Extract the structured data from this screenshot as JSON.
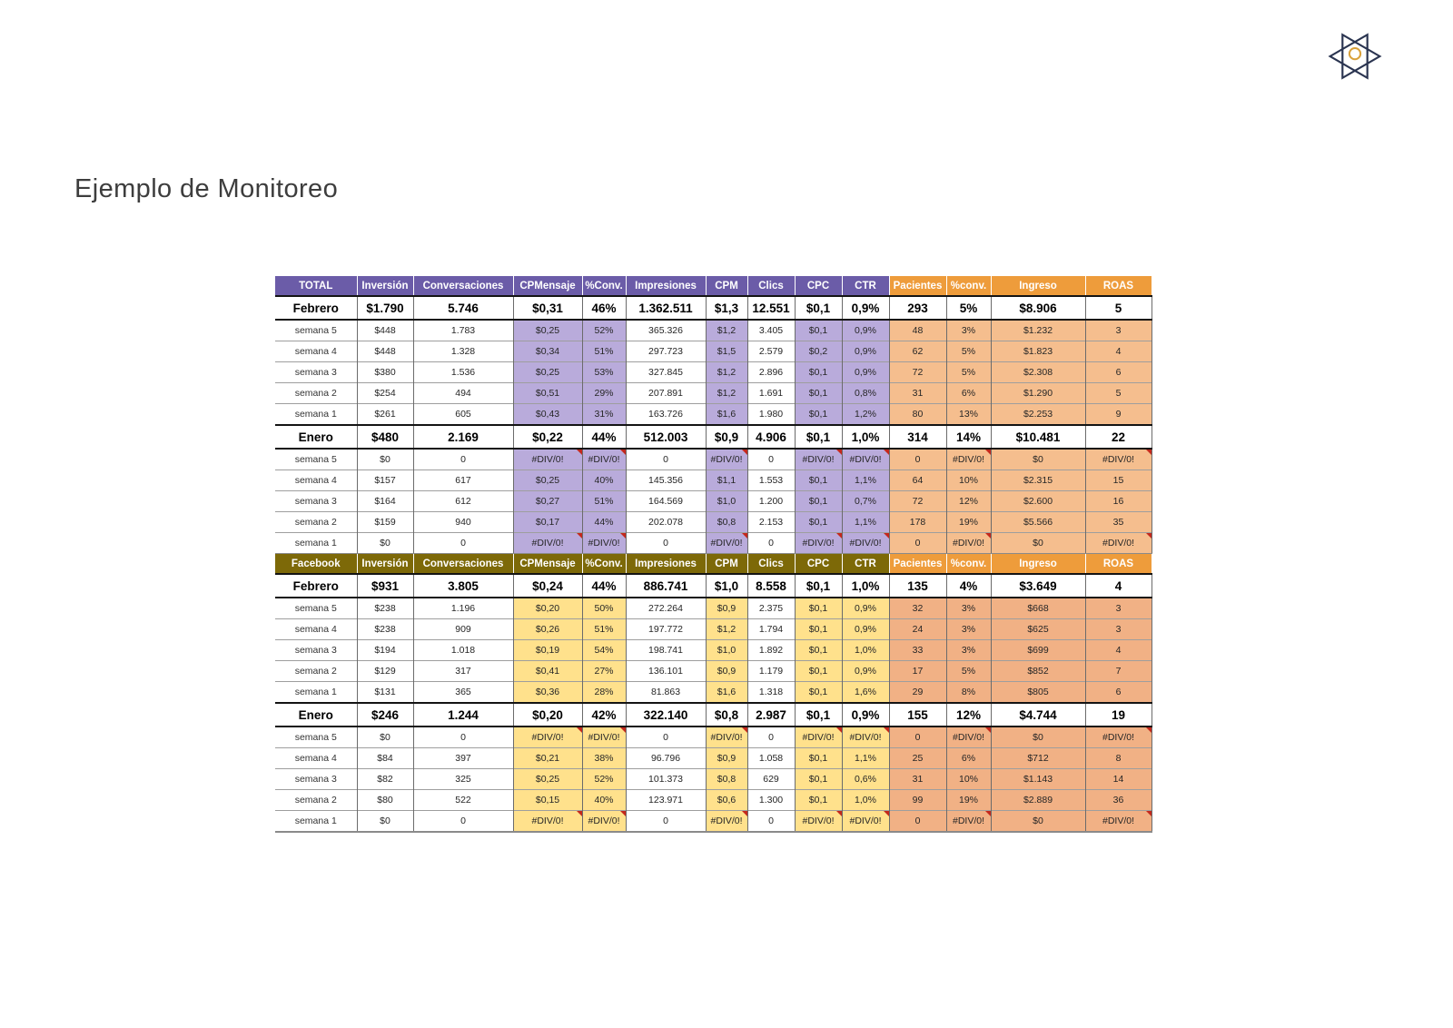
{
  "title": "Ejemplo de Monitoreo",
  "logo": {
    "star_color": "#2A3450",
    "circle_color": "#D9A13B"
  },
  "error_value": "#DIV/0!",
  "flag_color": "#C4281C",
  "tables": [
    {
      "id": "total",
      "colors": {
        "header": "#6B5CA8",
        "highlight": "#B9ABDB",
        "accent_header": "#EE9C3B",
        "accent_light": "#F5BE8E"
      },
      "header": [
        "TOTAL",
        "Inversión",
        "Conversaciones",
        "CPMensaje",
        "%Conv.",
        "Impresiones",
        "CPM",
        "Clics",
        "CPC",
        "CTR",
        "Pacientes",
        "%conv.",
        "Ingreso",
        "ROAS"
      ],
      "rows": [
        {
          "type": "month",
          "cells": [
            "Febrero",
            "$1.790",
            "5.746",
            "$0,31",
            "46%",
            "1.362.511",
            "$1,3",
            "12.551",
            "$0,1",
            "0,9%",
            "293",
            "5%",
            "$8.906",
            "5"
          ]
        },
        {
          "type": "week",
          "cells": [
            "semana 5",
            "$448",
            "1.783",
            "$0,25",
            "52%",
            "365.326",
            "$1,2",
            "3.405",
            "$0,1",
            "0,9%",
            "48",
            "3%",
            "$1.232",
            "3"
          ]
        },
        {
          "type": "week",
          "cells": [
            "semana 4",
            "$448",
            "1.328",
            "$0,34",
            "51%",
            "297.723",
            "$1,5",
            "2.579",
            "$0,2",
            "0,9%",
            "62",
            "5%",
            "$1.823",
            "4"
          ]
        },
        {
          "type": "week",
          "cells": [
            "semana 3",
            "$380",
            "1.536",
            "$0,25",
            "53%",
            "327.845",
            "$1,2",
            "2.896",
            "$0,1",
            "0,9%",
            "72",
            "5%",
            "$2.308",
            "6"
          ]
        },
        {
          "type": "week",
          "cells": [
            "semana 2",
            "$254",
            "494",
            "$0,51",
            "29%",
            "207.891",
            "$1,2",
            "1.691",
            "$0,1",
            "0,8%",
            "31",
            "6%",
            "$1.290",
            "5"
          ]
        },
        {
          "type": "week",
          "cells": [
            "semana 1",
            "$261",
            "605",
            "$0,43",
            "31%",
            "163.726",
            "$1,6",
            "1.980",
            "$0,1",
            "1,2%",
            "80",
            "13%",
            "$2.253",
            "9"
          ]
        },
        {
          "type": "month",
          "cells": [
            "Enero",
            "$480",
            "2.169",
            "$0,22",
            "44%",
            "512.003",
            "$0,9",
            "4.906",
            "$0,1",
            "1,0%",
            "314",
            "14%",
            "$10.481",
            "22"
          ]
        },
        {
          "type": "week",
          "cells": [
            "semana 5",
            "$0",
            "0",
            "#DIV/0!",
            "#DIV/0!",
            "0",
            "#DIV/0!",
            "0",
            "#DIV/0!",
            "#DIV/0!",
            "0",
            "#DIV/0!",
            "$0",
            "#DIV/0!"
          ]
        },
        {
          "type": "week",
          "cells": [
            "semana 4",
            "$157",
            "617",
            "$0,25",
            "40%",
            "145.356",
            "$1,1",
            "1.553",
            "$0,1",
            "1,1%",
            "64",
            "10%",
            "$2.315",
            "15"
          ]
        },
        {
          "type": "week",
          "cells": [
            "semana 3",
            "$164",
            "612",
            "$0,27",
            "51%",
            "164.569",
            "$1,0",
            "1.200",
            "$0,1",
            "0,7%",
            "72",
            "12%",
            "$2.600",
            "16"
          ]
        },
        {
          "type": "week",
          "cells": [
            "semana 2",
            "$159",
            "940",
            "$0,17",
            "44%",
            "202.078",
            "$0,8",
            "2.153",
            "$0,1",
            "1,1%",
            "178",
            "19%",
            "$5.566",
            "35"
          ]
        },
        {
          "type": "week",
          "cells": [
            "semana 1",
            "$0",
            "0",
            "#DIV/0!",
            "#DIV/0!",
            "0",
            "#DIV/0!",
            "0",
            "#DIV/0!",
            "#DIV/0!",
            "0",
            "#DIV/0!",
            "$0",
            "#DIV/0!"
          ]
        }
      ]
    },
    {
      "id": "facebook",
      "colors": {
        "header": "#7D6908",
        "highlight": "#FFE18C",
        "accent_header": "#EE9C3B",
        "accent_light": "#F1B185"
      },
      "header": [
        "Facebook",
        "Inversión",
        "Conversaciones",
        "CPMensaje",
        "%Conv.",
        "Impresiones",
        "CPM",
        "Clics",
        "CPC",
        "CTR",
        "Pacientes",
        "%conv.",
        "Ingreso",
        "ROAS"
      ],
      "rows": [
        {
          "type": "month",
          "cells": [
            "Febrero",
            "$931",
            "3.805",
            "$0,24",
            "44%",
            "886.741",
            "$1,0",
            "8.558",
            "$0,1",
            "1,0%",
            "135",
            "4%",
            "$3.649",
            "4"
          ]
        },
        {
          "type": "week",
          "cells": [
            "semana 5",
            "$238",
            "1.196",
            "$0,20",
            "50%",
            "272.264",
            "$0,9",
            "2.375",
            "$0,1",
            "0,9%",
            "32",
            "3%",
            "$668",
            "3"
          ]
        },
        {
          "type": "week",
          "cells": [
            "semana 4",
            "$238",
            "909",
            "$0,26",
            "51%",
            "197.772",
            "$1,2",
            "1.794",
            "$0,1",
            "0,9%",
            "24",
            "3%",
            "$625",
            "3"
          ]
        },
        {
          "type": "week",
          "cells": [
            "semana 3",
            "$194",
            "1.018",
            "$0,19",
            "54%",
            "198.741",
            "$1,0",
            "1.892",
            "$0,1",
            "1,0%",
            "33",
            "3%",
            "$699",
            "4"
          ]
        },
        {
          "type": "week",
          "cells": [
            "semana 2",
            "$129",
            "317",
            "$0,41",
            "27%",
            "136.101",
            "$0,9",
            "1.179",
            "$0,1",
            "0,9%",
            "17",
            "5%",
            "$852",
            "7"
          ]
        },
        {
          "type": "week",
          "cells": [
            "semana 1",
            "$131",
            "365",
            "$0,36",
            "28%",
            "81.863",
            "$1,6",
            "1.318",
            "$0,1",
            "1,6%",
            "29",
            "8%",
            "$805",
            "6"
          ]
        },
        {
          "type": "month",
          "cells": [
            "Enero",
            "$246",
            "1.244",
            "$0,20",
            "42%",
            "322.140",
            "$0,8",
            "2.987",
            "$0,1",
            "0,9%",
            "155",
            "12%",
            "$4.744",
            "19"
          ]
        },
        {
          "type": "week",
          "cells": [
            "semana 5",
            "$0",
            "0",
            "#DIV/0!",
            "#DIV/0!",
            "0",
            "#DIV/0!",
            "0",
            "#DIV/0!",
            "#DIV/0!",
            "0",
            "#DIV/0!",
            "$0",
            "#DIV/0!"
          ]
        },
        {
          "type": "week",
          "cells": [
            "semana 4",
            "$84",
            "397",
            "$0,21",
            "38%",
            "96.796",
            "$0,9",
            "1.058",
            "$0,1",
            "1,1%",
            "25",
            "6%",
            "$712",
            "8"
          ]
        },
        {
          "type": "week",
          "cells": [
            "semana 3",
            "$82",
            "325",
            "$0,25",
            "52%",
            "101.373",
            "$0,8",
            "629",
            "$0,1",
            "0,6%",
            "31",
            "10%",
            "$1.143",
            "14"
          ]
        },
        {
          "type": "week",
          "cells": [
            "semana 2",
            "$80",
            "522",
            "$0,15",
            "40%",
            "123.971",
            "$0,6",
            "1.300",
            "$0,1",
            "1,0%",
            "99",
            "19%",
            "$2.889",
            "36"
          ]
        },
        {
          "type": "week",
          "cells": [
            "semana 1",
            "$0",
            "0",
            "#DIV/0!",
            "#DIV/0!",
            "0",
            "#DIV/0!",
            "0",
            "#DIV/0!",
            "#DIV/0!",
            "0",
            "#DIV/0!",
            "$0",
            "#DIV/0!"
          ]
        }
      ]
    }
  ]
}
